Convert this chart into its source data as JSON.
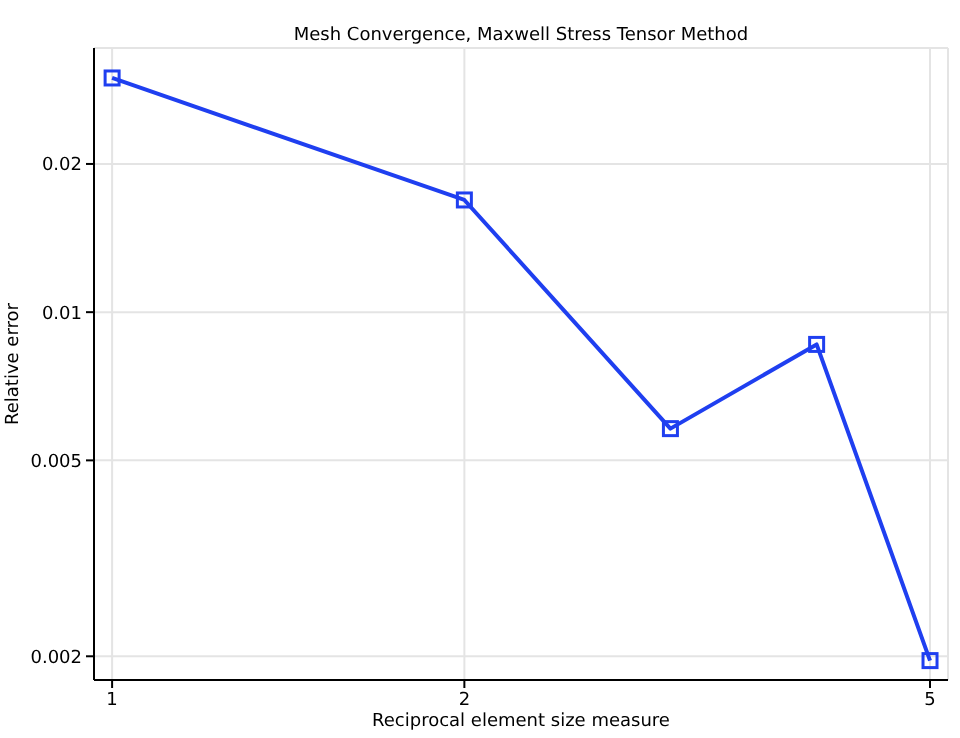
{
  "chart_data": {
    "type": "line",
    "title": "Mesh Convergence, Maxwell Stress Tensor Method",
    "xlabel": "Reciprocal element size measure",
    "ylabel": "Relative error",
    "x": [
      1,
      2,
      3,
      4,
      5
    ],
    "series": [
      {
        "color": "#1f3ff0",
        "values": [
          0.0299,
          0.0169,
          0.0058,
          0.0086,
          0.00196
        ]
      }
    ],
    "log": "xy",
    "xlim": [
      0.965,
      5.18
    ],
    "xticks": [
      1,
      2,
      5
    ],
    "ylim": [
      0.00179,
      0.0344
    ],
    "yticks": [
      0.002,
      0.005,
      0.01,
      0.02
    ],
    "grid": true,
    "marker": "square",
    "line_style": "solid"
  }
}
